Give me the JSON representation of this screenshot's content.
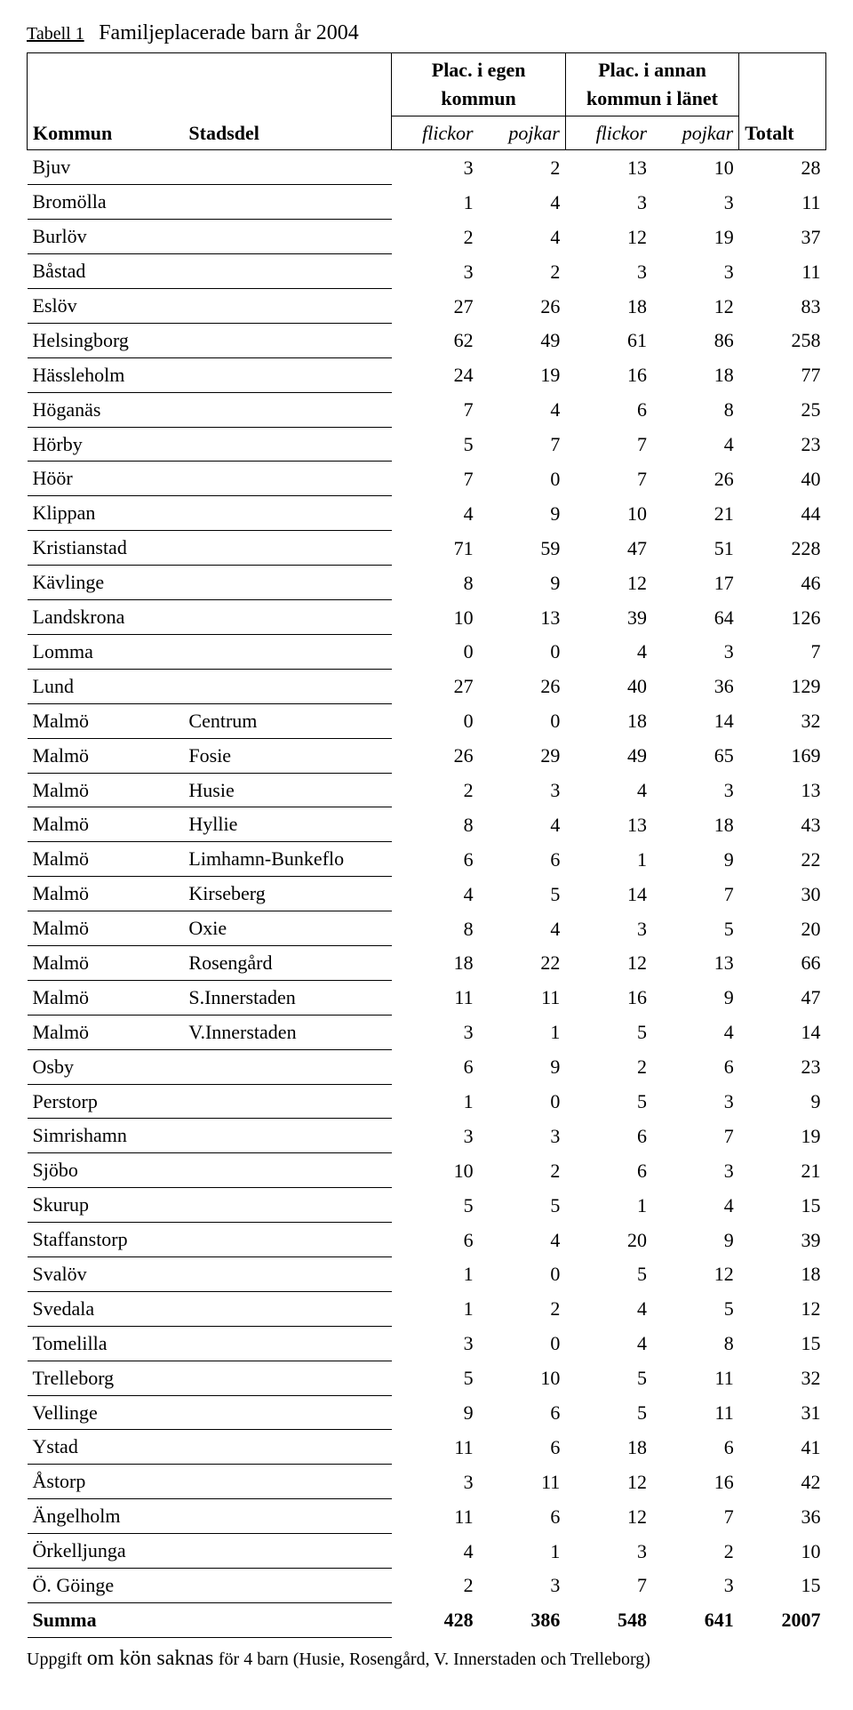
{
  "title": {
    "label": "Tabell 1",
    "text": "Familjeplacerade barn år 2004"
  },
  "headers": {
    "kommun": "Kommun",
    "stadsdel": "Stadsdel",
    "egen_l1": "Plac. i egen",
    "egen_l2": "kommun",
    "annan_l1": "Plac. i annan",
    "annan_l2": "kommun i länet",
    "totalt": "Totalt",
    "flickor": "flickor",
    "pojkar": "pojkar"
  },
  "rows": [
    {
      "k": "Bjuv",
      "s": "",
      "v": [
        3,
        2,
        13,
        10,
        28
      ]
    },
    {
      "k": "Bromölla",
      "s": "",
      "v": [
        1,
        4,
        3,
        3,
        11
      ]
    },
    {
      "k": "Burlöv",
      "s": "",
      "v": [
        2,
        4,
        12,
        19,
        37
      ]
    },
    {
      "k": "Båstad",
      "s": "",
      "v": [
        3,
        2,
        3,
        3,
        11
      ]
    },
    {
      "k": "Eslöv",
      "s": "",
      "v": [
        27,
        26,
        18,
        12,
        83
      ]
    },
    {
      "k": "Helsingborg",
      "s": "",
      "v": [
        62,
        49,
        61,
        86,
        258
      ]
    },
    {
      "k": "Hässleholm",
      "s": "",
      "v": [
        24,
        19,
        16,
        18,
        77
      ]
    },
    {
      "k": "Höganäs",
      "s": "",
      "v": [
        7,
        4,
        6,
        8,
        25
      ]
    },
    {
      "k": "Hörby",
      "s": "",
      "v": [
        5,
        7,
        7,
        4,
        23
      ]
    },
    {
      "k": "Höör",
      "s": "",
      "v": [
        7,
        0,
        7,
        26,
        40
      ]
    },
    {
      "k": "Klippan",
      "s": "",
      "v": [
        4,
        9,
        10,
        21,
        44
      ]
    },
    {
      "k": "Kristianstad",
      "s": "",
      "v": [
        71,
        59,
        47,
        51,
        228
      ]
    },
    {
      "k": "Kävlinge",
      "s": "",
      "v": [
        8,
        9,
        12,
        17,
        46
      ]
    },
    {
      "k": "Landskrona",
      "s": "",
      "v": [
        10,
        13,
        39,
        64,
        126
      ]
    },
    {
      "k": "Lomma",
      "s": "",
      "v": [
        0,
        0,
        4,
        3,
        7
      ]
    },
    {
      "k": "Lund",
      "s": "",
      "v": [
        27,
        26,
        40,
        36,
        129
      ]
    },
    {
      "k": "Malmö",
      "s": "Centrum",
      "v": [
        0,
        0,
        18,
        14,
        32
      ]
    },
    {
      "k": "Malmö",
      "s": "Fosie",
      "v": [
        26,
        29,
        49,
        65,
        169
      ]
    },
    {
      "k": "Malmö",
      "s": "Husie",
      "v": [
        2,
        3,
        4,
        3,
        13
      ]
    },
    {
      "k": "Malmö",
      "s": "Hyllie",
      "v": [
        8,
        4,
        13,
        18,
        43
      ]
    },
    {
      "k": "Malmö",
      "s": "Limhamn-Bunkeflo",
      "v": [
        6,
        6,
        1,
        9,
        22
      ]
    },
    {
      "k": "Malmö",
      "s": "Kirseberg",
      "v": [
        4,
        5,
        14,
        7,
        30
      ]
    },
    {
      "k": "Malmö",
      "s": "Oxie",
      "v": [
        8,
        4,
        3,
        5,
        20
      ]
    },
    {
      "k": "Malmö",
      "s": "Rosengård",
      "v": [
        18,
        22,
        12,
        13,
        66
      ]
    },
    {
      "k": "Malmö",
      "s": "S.Innerstaden",
      "v": [
        11,
        11,
        16,
        9,
        47
      ]
    },
    {
      "k": "Malmö",
      "s": "V.Innerstaden",
      "v": [
        3,
        1,
        5,
        4,
        14
      ]
    },
    {
      "k": "Osby",
      "s": "",
      "v": [
        6,
        9,
        2,
        6,
        23
      ]
    },
    {
      "k": "Perstorp",
      "s": "",
      "v": [
        1,
        0,
        5,
        3,
        9
      ]
    },
    {
      "k": "Simrishamn",
      "s": "",
      "v": [
        3,
        3,
        6,
        7,
        19
      ]
    },
    {
      "k": "Sjöbo",
      "s": "",
      "v": [
        10,
        2,
        6,
        3,
        21
      ]
    },
    {
      "k": "Skurup",
      "s": "",
      "v": [
        5,
        5,
        1,
        4,
        15
      ]
    },
    {
      "k": "Staffanstorp",
      "s": "",
      "v": [
        6,
        4,
        20,
        9,
        39
      ]
    },
    {
      "k": "Svalöv",
      "s": "",
      "v": [
        1,
        0,
        5,
        12,
        18
      ]
    },
    {
      "k": "Svedala",
      "s": "",
      "v": [
        1,
        2,
        4,
        5,
        12
      ]
    },
    {
      "k": "Tomelilla",
      "s": "",
      "v": [
        3,
        0,
        4,
        8,
        15
      ]
    },
    {
      "k": "Trelleborg",
      "s": "",
      "v": [
        5,
        10,
        5,
        11,
        32
      ]
    },
    {
      "k": "Vellinge",
      "s": "",
      "v": [
        9,
        6,
        5,
        11,
        31
      ]
    },
    {
      "k": "Ystad",
      "s": "",
      "v": [
        11,
        6,
        18,
        6,
        41
      ]
    },
    {
      "k": "Åstorp",
      "s": "",
      "v": [
        3,
        11,
        12,
        16,
        42
      ]
    },
    {
      "k": "Ängelholm",
      "s": "",
      "v": [
        11,
        6,
        12,
        7,
        36
      ]
    },
    {
      "k": "Örkelljunga",
      "s": "",
      "v": [
        4,
        1,
        3,
        2,
        10
      ]
    },
    {
      "k": "Ö. Göinge",
      "s": "",
      "v": [
        2,
        3,
        7,
        3,
        15
      ]
    }
  ],
  "summary": {
    "label": "Summa",
    "v": [
      428,
      386,
      548,
      641,
      2007
    ]
  },
  "footnote": {
    "lead": "Uppgift",
    "big": "om kön saknas",
    "rest": "för 4 barn (Husie, Rosengård, V. Innerstaden och Trelleborg)"
  }
}
